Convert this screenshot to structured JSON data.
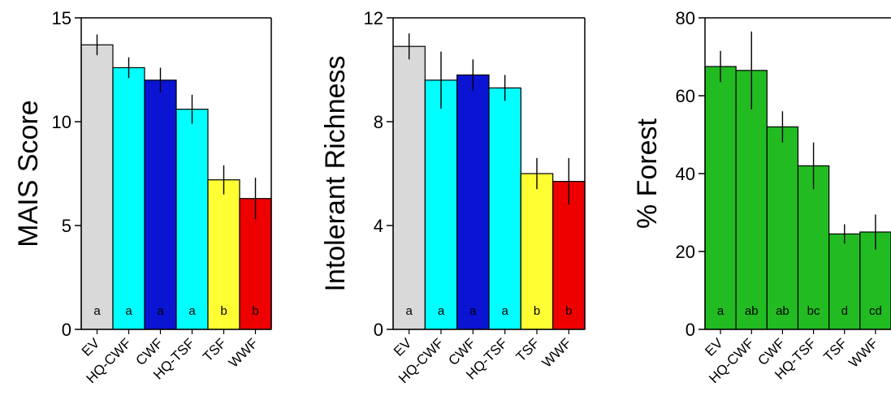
{
  "chart_data": [
    {
      "type": "bar",
      "ylabel": "MAIS Score",
      "ylim": [
        0,
        15
      ],
      "yticks": [
        0,
        5,
        10,
        15
      ],
      "categories": [
        "EV",
        "HQ-CWF",
        "CWF",
        "HQ-TSF",
        "TSF",
        "WWF"
      ],
      "values": [
        13.7,
        12.6,
        12.0,
        10.6,
        7.2,
        6.3
      ],
      "errors": [
        0.5,
        0.5,
        0.6,
        0.7,
        0.7,
        1.0
      ],
      "letters": [
        "a",
        "a",
        "a",
        "a",
        "b",
        "b"
      ],
      "colors": [
        "#d9d9d9",
        "#00ffff",
        "#0a14d2",
        "#00ffff",
        "#ffff33",
        "#ee0000"
      ],
      "grid": false
    },
    {
      "type": "bar",
      "ylabel": "Intolerant Richness",
      "ylim": [
        0,
        12
      ],
      "yticks": [
        0,
        4,
        8,
        12
      ],
      "categories": [
        "EV",
        "HQ-CWF",
        "CWF",
        "HQ-TSF",
        "TSF",
        "WWF"
      ],
      "values": [
        10.9,
        9.6,
        9.8,
        9.3,
        6.0,
        5.7
      ],
      "errors": [
        0.5,
        1.1,
        0.6,
        0.5,
        0.6,
        0.9
      ],
      "letters": [
        "a",
        "a",
        "a",
        "a",
        "b",
        "b"
      ],
      "colors": [
        "#d9d9d9",
        "#00ffff",
        "#0a14d2",
        "#00ffff",
        "#ffff33",
        "#ee0000"
      ],
      "grid": false
    },
    {
      "type": "bar",
      "ylabel": "% Forest",
      "ylim": [
        0,
        80
      ],
      "yticks": [
        0,
        20,
        40,
        60,
        80
      ],
      "categories": [
        "EV",
        "HQ-CWF",
        "CWF",
        "HQ-TSF",
        "TSF",
        "WWF"
      ],
      "values": [
        67.5,
        66.5,
        52.0,
        42.0,
        24.5,
        25.0
      ],
      "errors": [
        4.0,
        10.0,
        4.0,
        6.0,
        2.5,
        4.5
      ],
      "letters": [
        "a",
        "ab",
        "ab",
        "bc",
        "d",
        "cd"
      ],
      "colors": [
        "#22bb22",
        "#22bb22",
        "#22bb22",
        "#22bb22",
        "#22bb22",
        "#22bb22"
      ],
      "grid": false
    }
  ]
}
